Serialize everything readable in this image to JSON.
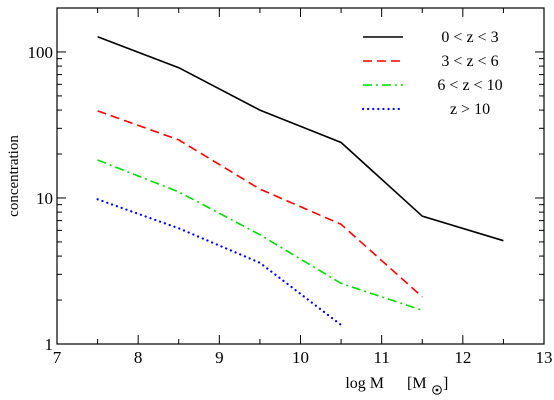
{
  "chart_data": {
    "type": "line",
    "xlabel": "log M",
    "xlabel_unit": "[M",
    "xlabel_unit_close": "]",
    "ylabel": "concentration",
    "x_scale": "linear",
    "y_scale": "log",
    "xlim": [
      7,
      13
    ],
    "ylim": [
      1,
      200
    ],
    "x_ticks": [
      7,
      8,
      9,
      10,
      11,
      12,
      13
    ],
    "x_tick_labels": [
      "7",
      "8",
      "9",
      "10",
      "11",
      "12",
      "13"
    ],
    "y_ticks": [
      1,
      10,
      100
    ],
    "y_tick_labels": [
      "1",
      "10",
      "100"
    ],
    "grid": false,
    "legend_position": "top-right",
    "series": [
      {
        "name": "0 < z < 3",
        "color": "#000000",
        "dash": "solid",
        "x": [
          7.5,
          8.5,
          9.5,
          10.5,
          11.5,
          12.5
        ],
        "y": [
          127,
          78,
          40,
          24,
          7.5,
          5.1
        ]
      },
      {
        "name": "3 < z < 6",
        "color": "#ff0000",
        "dash": "dashed",
        "x": [
          7.5,
          8.5,
          9.5,
          10.5,
          11.5
        ],
        "y": [
          39.5,
          25,
          11.5,
          6.6,
          2.1
        ]
      },
      {
        "name": "6 < z < 10",
        "color": "#00dd00",
        "dash": "dashdot",
        "x": [
          7.5,
          8.5,
          9.5,
          10.5,
          11.5
        ],
        "y": [
          18.2,
          11,
          5.6,
          2.6,
          1.7
        ]
      },
      {
        "name": "z > 10",
        "color": "#0000ff",
        "dash": "dotted",
        "x": [
          7.5,
          8.5,
          9.5,
          10.5
        ],
        "y": [
          9.8,
          6.2,
          3.6,
          1.35
        ]
      }
    ]
  }
}
